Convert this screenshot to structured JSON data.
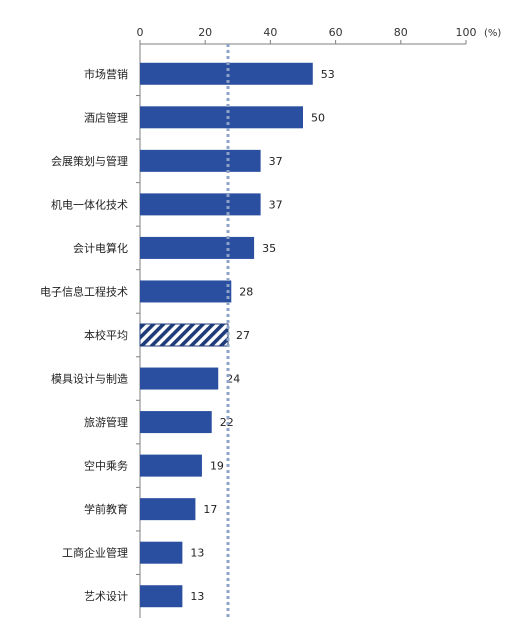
{
  "chart_data": {
    "type": "bar",
    "orientation": "horizontal",
    "x_axis_position": "top",
    "x_unit": "(%)",
    "xlim": [
      0,
      100
    ],
    "xticks": [
      0,
      20,
      40,
      60,
      80,
      100
    ],
    "categories": [
      "市场营销",
      "酒店管理",
      "会展策划与管理",
      "机电一体化技术",
      "会计电算化",
      "电子信息工程技术",
      "本校平均",
      "模具设计与制造",
      "旅游管理",
      "空中乘务",
      "学前教育",
      "工商企业管理",
      "艺术设计"
    ],
    "values": [
      53,
      50,
      37,
      37,
      35,
      28,
      27,
      24,
      22,
      19,
      17,
      13,
      13
    ],
    "highlight_category": "本校平均",
    "reference_line": 27,
    "grid": false,
    "colors": {
      "bar": "#2B4FA0",
      "highlight": "#1F3C7A",
      "reference_line": "#8FA3C7",
      "axis": "#7F7F7F"
    }
  }
}
